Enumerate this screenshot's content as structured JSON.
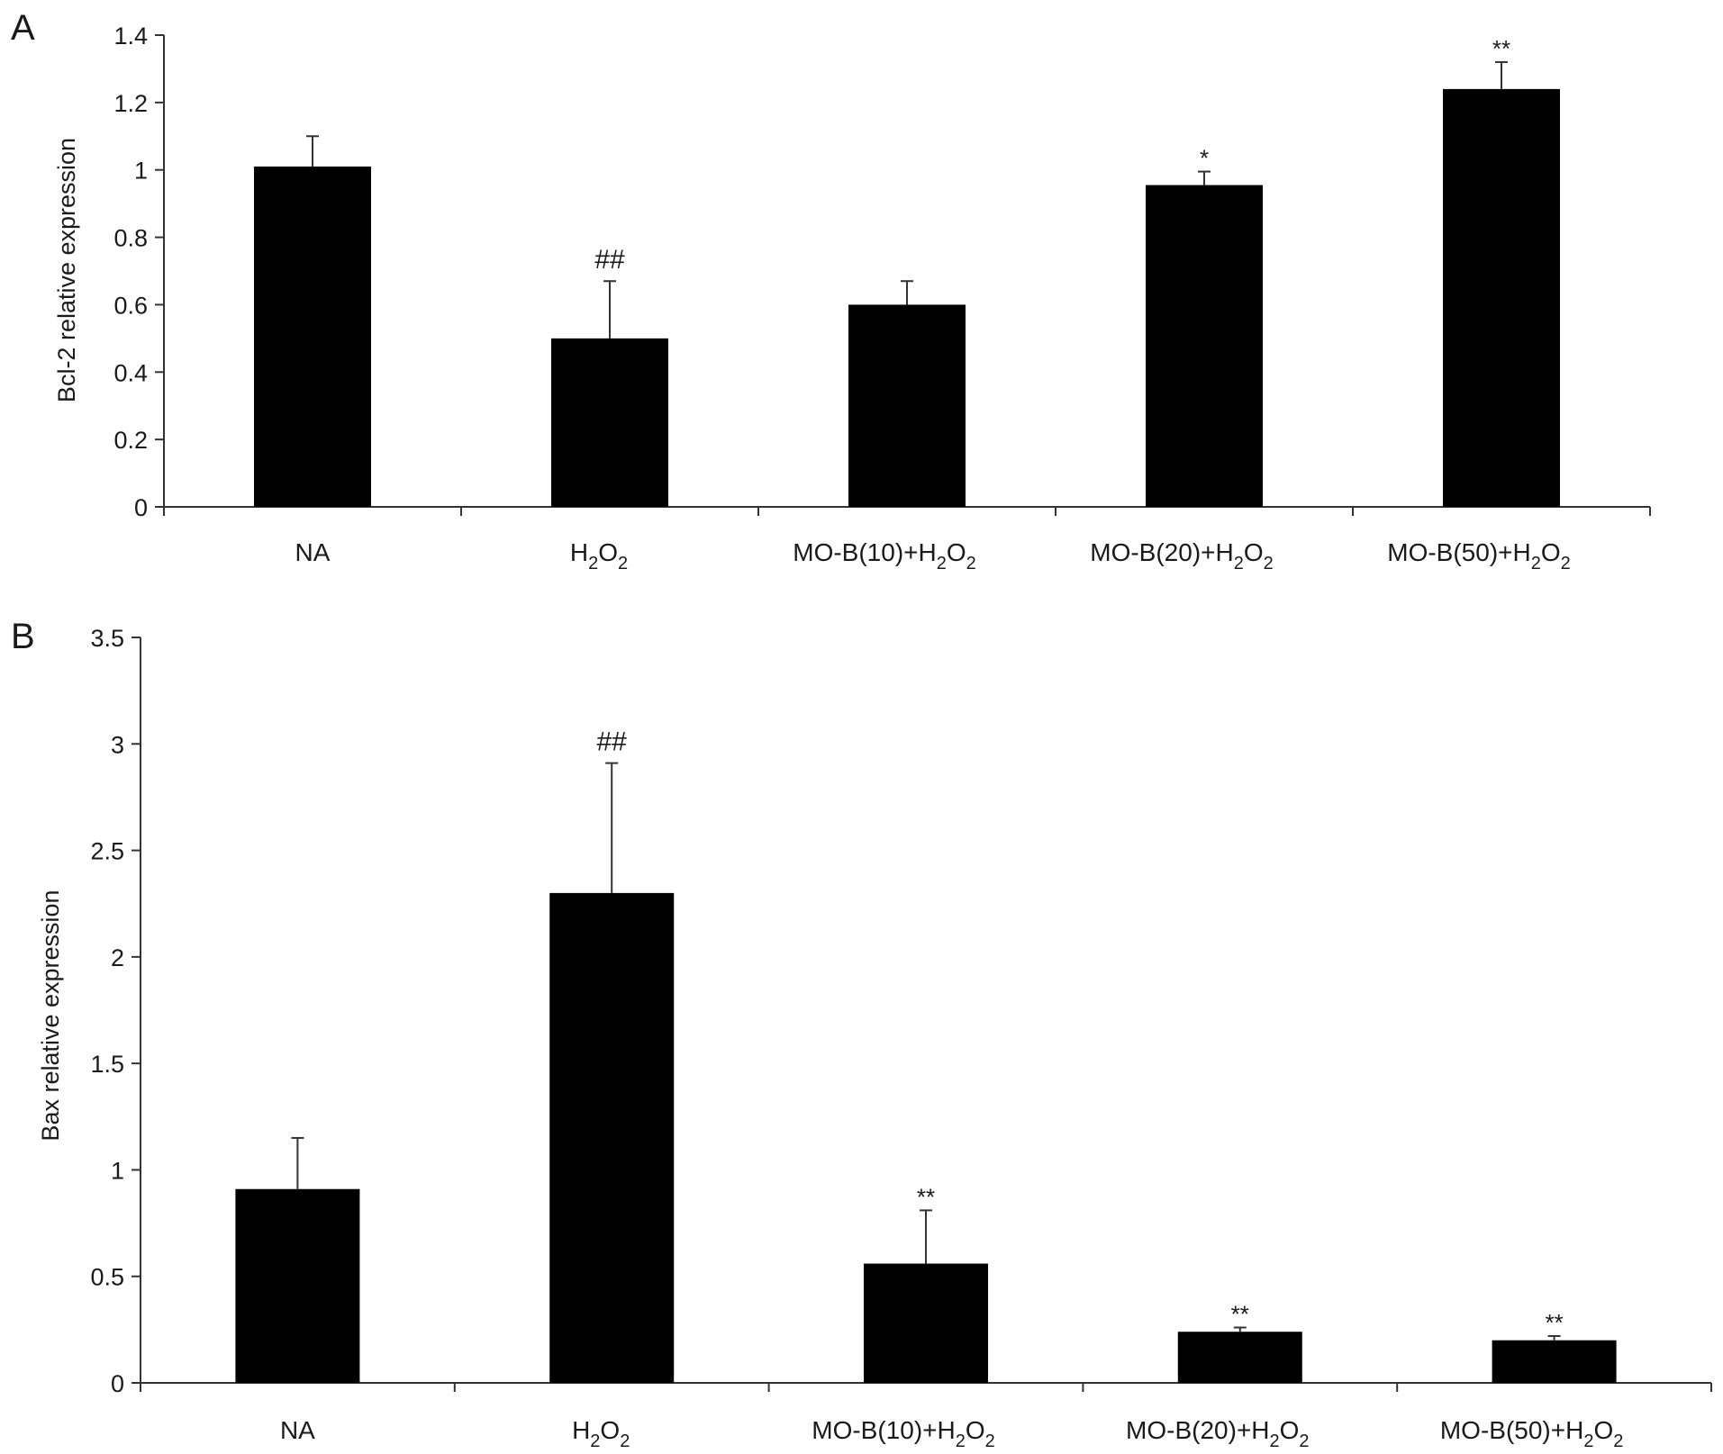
{
  "chart_data": [
    {
      "panel": "A",
      "type": "bar",
      "ylabel": "Bcl-2 relative expression",
      "xlabel": "",
      "ylim": [
        0,
        1.4
      ],
      "yticks": [
        0,
        0.2,
        0.4,
        0.6,
        0.8,
        1,
        1.2,
        1.4
      ],
      "categories": [
        {
          "main": "NA"
        },
        {
          "main": "H",
          "sub1": "2",
          "mid": "O",
          "sub2": "2"
        },
        {
          "main": "MO-B(10)+H",
          "sub1": "2",
          "mid": "O",
          "sub2": "2"
        },
        {
          "main": "MO-B(20)+H",
          "sub1": "2",
          "mid": "O",
          "sub2": "2"
        },
        {
          "main": "MO-B(50)+H",
          "sub1": "2",
          "mid": "O",
          "sub2": "2"
        }
      ],
      "values": [
        1.01,
        0.5,
        0.6,
        0.955,
        1.24
      ],
      "errors": [
        0.09,
        0.17,
        0.07,
        0.04,
        0.08
      ],
      "annotations": [
        "",
        "##",
        "",
        "*",
        "**"
      ],
      "bar_color": "#000000",
      "grid": false
    },
    {
      "panel": "B",
      "type": "bar",
      "ylabel": "Bax relative expression",
      "xlabel": "",
      "ylim": [
        0,
        3.5
      ],
      "yticks": [
        0,
        0.5,
        1,
        1.5,
        2,
        2.5,
        3,
        3.5
      ],
      "categories": [
        {
          "main": "NA"
        },
        {
          "main": "H",
          "sub1": "2",
          "mid": "O",
          "sub2": "2"
        },
        {
          "main": "MO-B(10)+H",
          "sub1": "2",
          "mid": "O",
          "sub2": "2"
        },
        {
          "main": "MO-B(20)+H",
          "sub1": "2",
          "mid": "O",
          "sub2": "2"
        },
        {
          "main": "MO-B(50)+H",
          "sub1": "2",
          "mid": "O",
          "sub2": "2"
        }
      ],
      "values": [
        0.91,
        2.3,
        0.56,
        0.24,
        0.2
      ],
      "errors": [
        0.24,
        0.61,
        0.25,
        0.02,
        0.02
      ],
      "annotations": [
        "",
        "##",
        "**",
        "**",
        "**"
      ],
      "bar_color": "#000000",
      "grid": false
    }
  ]
}
